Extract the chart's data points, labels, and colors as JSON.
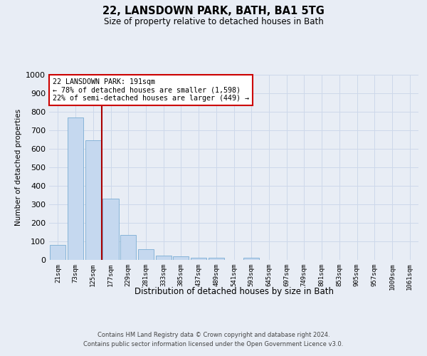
{
  "title": "22, LANSDOWN PARK, BATH, BA1 5TG",
  "subtitle": "Size of property relative to detached houses in Bath",
  "xlabel": "Distribution of detached houses by size in Bath",
  "ylabel": "Number of detached properties",
  "bar_color": "#c5d8ef",
  "bar_edge_color": "#7aadd4",
  "categories": [
    "21sqm",
    "73sqm",
    "125sqm",
    "177sqm",
    "229sqm",
    "281sqm",
    "333sqm",
    "385sqm",
    "437sqm",
    "489sqm",
    "541sqm",
    "593sqm",
    "645sqm",
    "697sqm",
    "749sqm",
    "801sqm",
    "853sqm",
    "905sqm",
    "957sqm",
    "1009sqm",
    "1061sqm"
  ],
  "values": [
    82,
    770,
    645,
    330,
    133,
    58,
    22,
    20,
    12,
    10,
    0,
    12,
    0,
    0,
    0,
    0,
    0,
    0,
    0,
    0,
    0
  ],
  "ylim": [
    0,
    1000
  ],
  "yticks": [
    0,
    100,
    200,
    300,
    400,
    500,
    600,
    700,
    800,
    900,
    1000
  ],
  "vline_x": 2.5,
  "annotation_text": "22 LANSDOWN PARK: 191sqm\n← 78% of detached houses are smaller (1,598)\n22% of semi-detached houses are larger (449) →",
  "annotation_box_color": "#ffffff",
  "annotation_box_edge": "#cc0000",
  "footer1": "Contains HM Land Registry data © Crown copyright and database right 2024.",
  "footer2": "Contains public sector information licensed under the Open Government Licence v3.0.",
  "grid_color": "#cdd8ea",
  "vline_color": "#aa0000",
  "background_color": "#e8edf5"
}
